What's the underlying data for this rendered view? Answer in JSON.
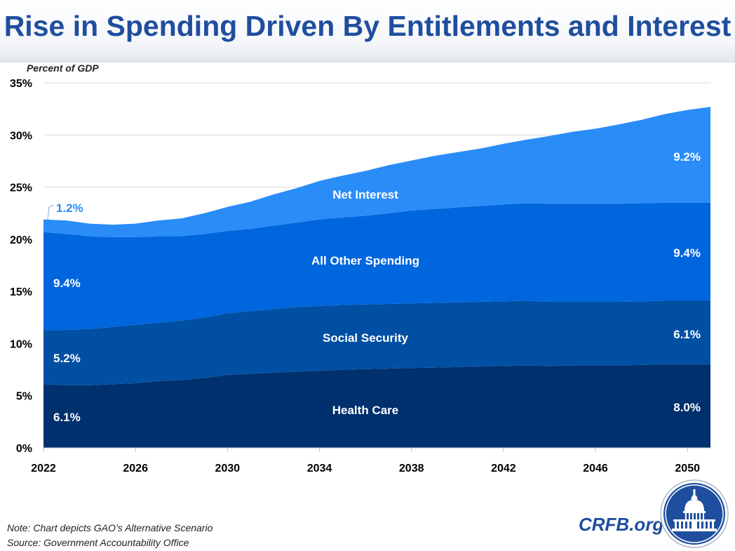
{
  "title": "Rise in Spending Driven By Entitlements and Interest",
  "footer": {
    "note": "Note: Chart depicts GAO’s Alternative Scenario",
    "source": "Source: Government Accountability Office",
    "brand": "CRFB.org"
  },
  "colors": {
    "title": "#1f4e9e",
    "health_care": "#00306e",
    "social_security": "#004fa3",
    "all_other": "#0066de",
    "net_interest": "#2a8cf7",
    "annotation": "#2a8cf7"
  },
  "chart_data": {
    "type": "area",
    "stacked": true,
    "ylabel": "Percent of GDP",
    "xlim": [
      2022,
      2051
    ],
    "ylim": [
      0,
      35
    ],
    "xticks": [
      "2022",
      "2026",
      "2030",
      "2034",
      "2038",
      "2042",
      "2046",
      "2050"
    ],
    "yticks": [
      "0%",
      "5%",
      "10%",
      "15%",
      "20%",
      "25%",
      "30%",
      "35%"
    ],
    "grid": true,
    "x": [
      2022,
      2023,
      2024,
      2025,
      2026,
      2027,
      2028,
      2029,
      2030,
      2031,
      2032,
      2033,
      2034,
      2035,
      2036,
      2037,
      2038,
      2039,
      2040,
      2041,
      2042,
      2043,
      2044,
      2045,
      2046,
      2047,
      2048,
      2049,
      2050,
      2051
    ],
    "series": [
      {
        "name": "Health Care",
        "color": "#00306e",
        "values": [
          6.1,
          6.0,
          6.0,
          6.1,
          6.2,
          6.4,
          6.5,
          6.7,
          7.0,
          7.1,
          7.2,
          7.3,
          7.4,
          7.5,
          7.55,
          7.6,
          7.65,
          7.7,
          7.75,
          7.8,
          7.85,
          7.9,
          7.85,
          7.9,
          7.9,
          7.9,
          7.95,
          8.0,
          8.0,
          8.0
        ]
      },
      {
        "name": "Social Security",
        "color": "#004fa3",
        "values": [
          5.2,
          5.3,
          5.4,
          5.5,
          5.6,
          5.6,
          5.7,
          5.8,
          5.9,
          6.0,
          6.1,
          6.2,
          6.2,
          6.2,
          6.2,
          6.2,
          6.2,
          6.2,
          6.2,
          6.2,
          6.2,
          6.2,
          6.15,
          6.1,
          6.1,
          6.1,
          6.1,
          6.1,
          6.1,
          6.1
        ]
      },
      {
        "name": "All Other Spending",
        "color": "#0066de",
        "values": [
          9.4,
          9.2,
          8.9,
          8.6,
          8.4,
          8.3,
          8.1,
          8.0,
          7.9,
          7.9,
          8.0,
          8.1,
          8.3,
          8.4,
          8.5,
          8.7,
          8.9,
          9.0,
          9.1,
          9.2,
          9.3,
          9.35,
          9.4,
          9.4,
          9.4,
          9.4,
          9.4,
          9.4,
          9.4,
          9.4
        ]
      },
      {
        "name": "Net Interest",
        "color": "#2a8cf7",
        "values": [
          1.2,
          1.3,
          1.2,
          1.2,
          1.3,
          1.5,
          1.7,
          2.0,
          2.3,
          2.6,
          3.0,
          3.3,
          3.7,
          4.0,
          4.3,
          4.6,
          4.8,
          5.1,
          5.3,
          5.5,
          5.8,
          6.1,
          6.5,
          6.9,
          7.2,
          7.6,
          8.0,
          8.5,
          8.9,
          9.2
        ]
      }
    ],
    "labels": {
      "health_care": "Health Care",
      "social_security": "Social Security",
      "all_other": "All Other Spending",
      "net_interest": "Net Interest"
    },
    "start_values": {
      "health_care": "6.1%",
      "social_security": "5.2%",
      "all_other": "9.4%",
      "net_interest": "1.2%"
    },
    "end_values": {
      "health_care": "8.0%",
      "social_security": "6.1%",
      "all_other": "9.4%",
      "net_interest": "9.2%"
    }
  }
}
